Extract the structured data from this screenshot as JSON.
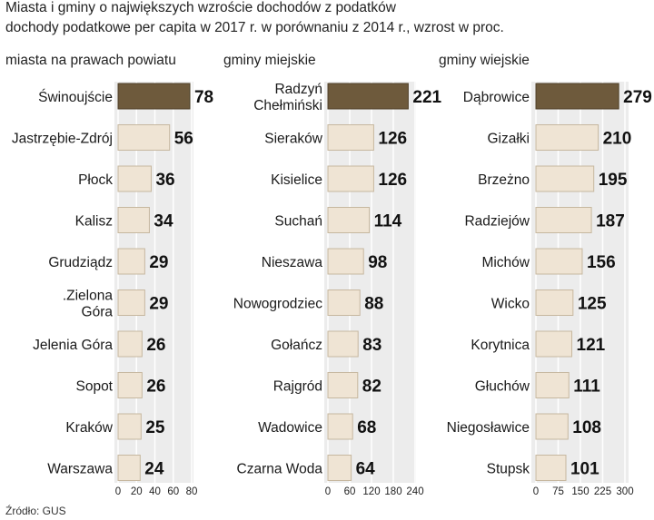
{
  "title": "Miasta i gminy o największych wzroście dochodów z podatków",
  "subtitle": "dochody podatkowe per capita w 2017 r. w porównaniu z 2014 r., wzrost w proc.",
  "source": "Źródło: GUS",
  "colors": {
    "highlight_bar": "#6e5a3c",
    "bar_fill": "#efe4d4",
    "bar_stroke": "#c6b79f",
    "panel_bg": "#ececec",
    "grid": "#ffffff"
  },
  "chart_data": [
    {
      "type": "bar",
      "orientation": "horizontal",
      "title": "miasta na prawach powiatu",
      "categories": [
        "Świnoujście",
        "Jastrzębie-Zdrój",
        "Płock",
        "Kalisz",
        "Grudziądz",
        ".Zielona Góra",
        "Jelenia Góra",
        "Sopot",
        "Kraków",
        "Warszawa"
      ],
      "values": [
        78,
        56,
        36,
        34,
        29,
        29,
        26,
        26,
        25,
        24
      ],
      "xlim": [
        0,
        80
      ],
      "xticks": [
        "0",
        "20",
        "40",
        "60",
        "80"
      ],
      "highlight_index": 0
    },
    {
      "type": "bar",
      "orientation": "horizontal",
      "title": "gminy miejskie",
      "categories": [
        "Radzyń Chełmiński",
        "Sieraków",
        "Kisielice",
        "Suchań",
        "Nieszawa",
        "Nowogrodziec",
        "Gołańcz",
        "Rajgród",
        "Wadowice",
        "Czarna Woda"
      ],
      "values": [
        221,
        126,
        126,
        114,
        98,
        88,
        83,
        82,
        68,
        64
      ],
      "xlim": [
        0,
        240
      ],
      "xticks": [
        "0",
        "60",
        "120",
        "180",
        "240"
      ],
      "highlight_index": 0
    },
    {
      "type": "bar",
      "orientation": "horizontal",
      "title": "gminy wiejskie",
      "categories": [
        "Dąbrowice",
        "Gizałki",
        "Brzeżno",
        "Radziejów",
        "Michów",
        "Wicko",
        "Korytnica",
        "Głuchów",
        "Niegosławice",
        "Stupsk"
      ],
      "values": [
        279,
        210,
        195,
        187,
        156,
        125,
        121,
        111,
        108,
        101
      ],
      "xlim": [
        0,
        300
      ],
      "xticks": [
        "0",
        "75",
        "150",
        "225",
        "300"
      ],
      "highlight_index": 0
    }
  ]
}
